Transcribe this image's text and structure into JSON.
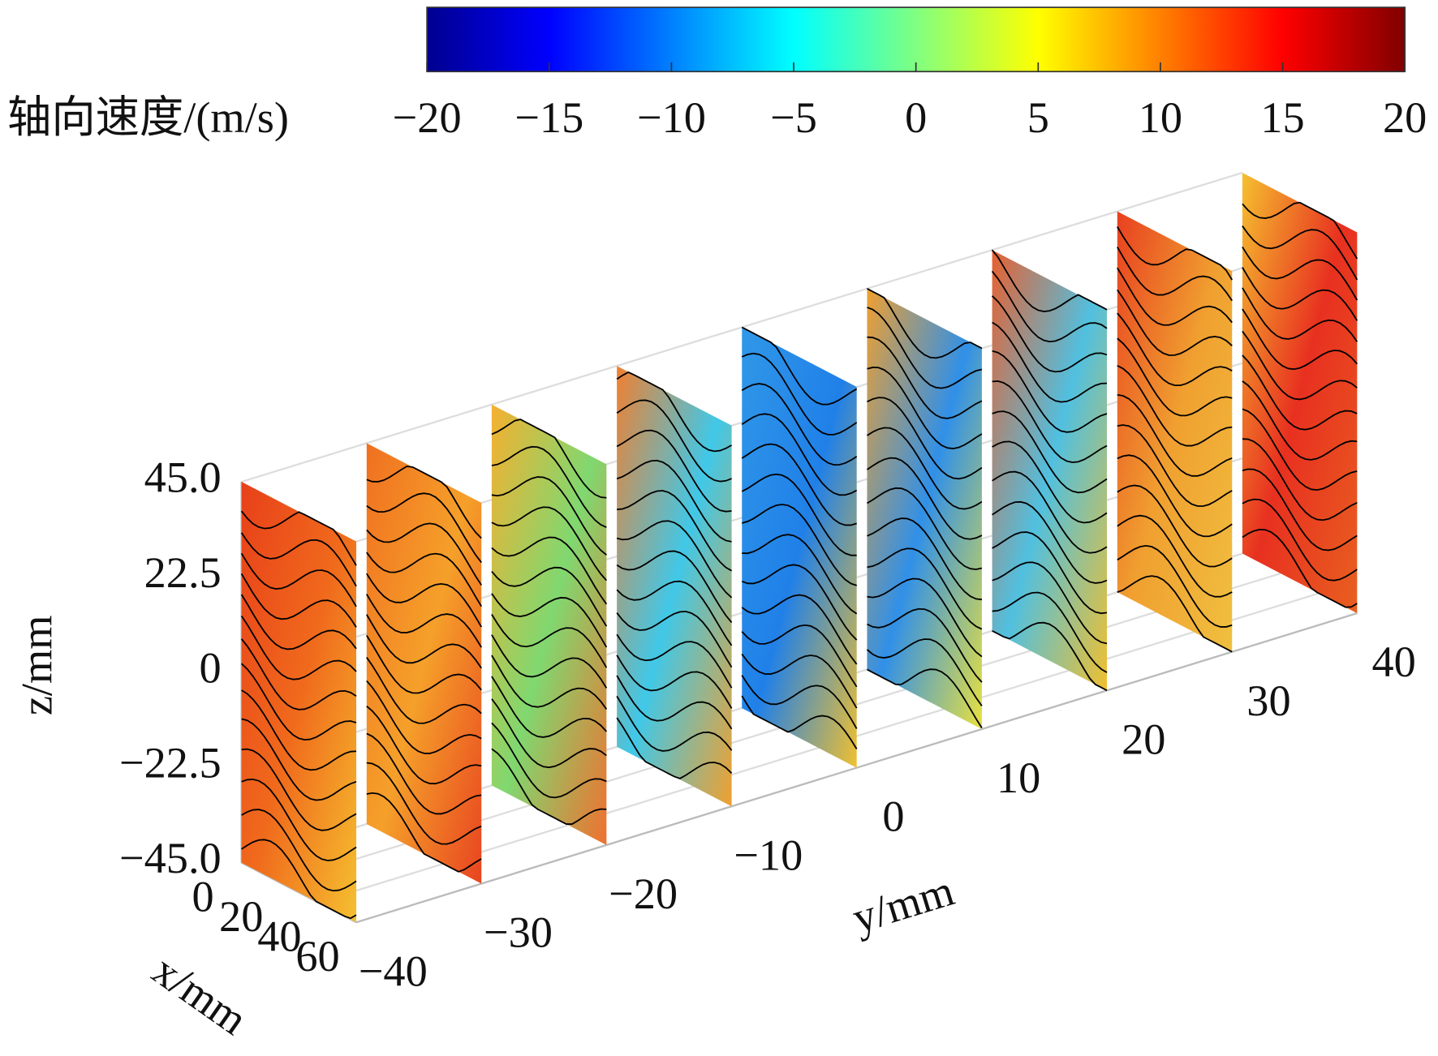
{
  "chart_data": {
    "type": "slice3d",
    "colorbar": {
      "label": "轴向速度/(m/s)",
      "lim": [
        -20,
        20
      ],
      "ticks": [
        {
          "value": -20,
          "label": "−20"
        },
        {
          "value": -15,
          "label": "−15"
        },
        {
          "value": -10,
          "label": "−10"
        },
        {
          "value": -5,
          "label": "−5"
        },
        0,
        5,
        10,
        15,
        20
      ],
      "colormap": [
        "#00008f",
        "#0000ff",
        "#0080ff",
        "#00ffff",
        "#80ff80",
        "#ffff00",
        "#ff8000",
        "#ff0000",
        "#800000"
      ]
    },
    "xlabel": "x/mm",
    "ylabel": "y/mm",
    "zlabel": "z/mm",
    "xlim": [
      0,
      60
    ],
    "ylim": [
      -40,
      40
    ],
    "zlim": [
      -45,
      45
    ],
    "xticks": [
      0,
      20,
      40,
      60
    ],
    "yticks": [
      {
        "value": -40,
        "label": "−40"
      },
      {
        "value": -30,
        "label": "−30"
      },
      {
        "value": -20,
        "label": "−20"
      },
      {
        "value": -10,
        "label": "−10"
      },
      0,
      10,
      20,
      30,
      40
    ],
    "zticks": [
      {
        "value": 45,
        "label": "45.0"
      },
      22.5,
      0,
      {
        "value": -22.5,
        "label": "−22.5"
      },
      {
        "value": -45,
        "label": "−45.0"
      }
    ],
    "slices_y": [
      -40,
      -30,
      -20,
      -10,
      0,
      10,
      20,
      30,
      40
    ],
    "grid": true
  }
}
